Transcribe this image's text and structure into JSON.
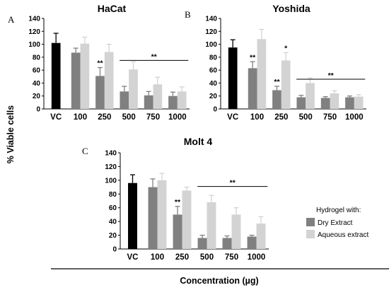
{
  "figure": {
    "ylabel": "% Viable cells",
    "xlabel": "Concentration (µg)"
  },
  "legend": {
    "title": "Hydrogel with:",
    "items": [
      {
        "label": "Dry Extract",
        "color": "#808080"
      },
      {
        "label": "Aqueous extract",
        "color": "#d3d3d3"
      }
    ]
  },
  "colors": {
    "control": "#000000",
    "dry": "#808080",
    "aqueous": "#d3d3d3"
  },
  "chart_data": [
    {
      "type": "bar",
      "panel_letter": "A",
      "title": "HaCat",
      "categories": [
        "VC",
        "100",
        "250",
        "500",
        "750",
        "1000"
      ],
      "ylim": [
        0,
        140
      ],
      "yticks": [
        0,
        20,
        40,
        60,
        80,
        100,
        120,
        140
      ],
      "series": [
        {
          "key": "control",
          "values": [
            102,
            null,
            null,
            null,
            null,
            null
          ],
          "errors": [
            15,
            null,
            null,
            null,
            null,
            null
          ]
        },
        {
          "key": "dry",
          "values": [
            null,
            87,
            51,
            27,
            21,
            20
          ],
          "errors": [
            null,
            7,
            13,
            8,
            6,
            6
          ]
        },
        {
          "key": "aqueous",
          "values": [
            null,
            101,
            88,
            61,
            38,
            27
          ],
          "errors": [
            null,
            10,
            12,
            12,
            11,
            7
          ]
        }
      ],
      "annotations": [
        {
          "text": "**",
          "category": "250",
          "series": "dry"
        },
        {
          "text": "**",
          "bracket_from": "500",
          "bracket_to": "1000",
          "at_value": 75
        }
      ]
    },
    {
      "type": "bar",
      "panel_letter": "B",
      "title": "Yoshida",
      "categories": [
        "VC",
        "100",
        "250",
        "500",
        "750",
        "1000"
      ],
      "ylim": [
        0,
        140
      ],
      "yticks": [
        0,
        20,
        40,
        60,
        80,
        100,
        120,
        140
      ],
      "series": [
        {
          "key": "control",
          "values": [
            95,
            null,
            null,
            null,
            null,
            null
          ],
          "errors": [
            12,
            null,
            null,
            null,
            null,
            null
          ]
        },
        {
          "key": "dry",
          "values": [
            null,
            63,
            29,
            18,
            17,
            18
          ],
          "errors": [
            null,
            10,
            6,
            3,
            2,
            2
          ]
        },
        {
          "key": "aqueous",
          "values": [
            null,
            108,
            75,
            40,
            24,
            19
          ],
          "errors": [
            null,
            15,
            12,
            8,
            4,
            3
          ]
        }
      ],
      "annotations": [
        {
          "text": "**",
          "category": "100",
          "series": "dry"
        },
        {
          "text": "**",
          "category": "250",
          "series": "dry"
        },
        {
          "text": "*",
          "category": "250",
          "series": "aqueous"
        },
        {
          "text": "**",
          "bracket_from": "500",
          "bracket_to": "1000",
          "at_value": 46
        }
      ]
    },
    {
      "type": "bar",
      "panel_letter": "C",
      "title": "Molt 4",
      "categories": [
        "VC",
        "100",
        "250",
        "500",
        "750",
        "1000"
      ],
      "ylim": [
        0,
        140
      ],
      "yticks": [
        0,
        20,
        40,
        60,
        80,
        100,
        120,
        140
      ],
      "series": [
        {
          "key": "control",
          "values": [
            96,
            null,
            null,
            null,
            null,
            null
          ],
          "errors": [
            12,
            null,
            null,
            null,
            null,
            null
          ]
        },
        {
          "key": "dry",
          "values": [
            null,
            90,
            50,
            16,
            16,
            18
          ],
          "errors": [
            null,
            12,
            12,
            4,
            3,
            2
          ]
        },
        {
          "key": "aqueous",
          "values": [
            null,
            100,
            85,
            68,
            50,
            37
          ],
          "errors": [
            null,
            10,
            5,
            10,
            10,
            10
          ]
        }
      ],
      "annotations": [
        {
          "text": "**",
          "category": "250",
          "series": "dry"
        },
        {
          "text": "**",
          "bracket_from": "500",
          "bracket_to": "1000",
          "at_value": 91
        }
      ]
    }
  ]
}
